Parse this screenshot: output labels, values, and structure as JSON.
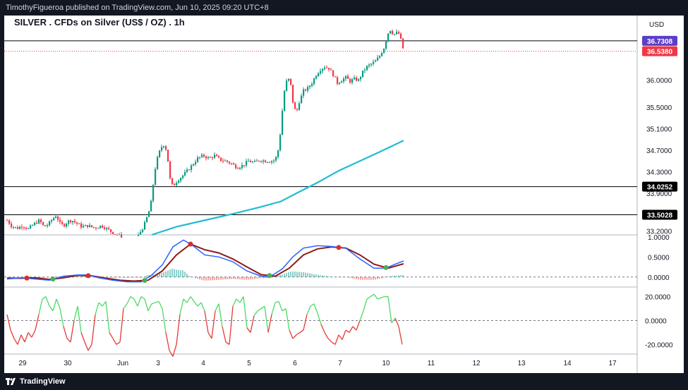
{
  "header": {
    "publisher_line": "TimothyFigueroa published on TradingView.com, Jun 10, 2025 09:20 UTC+8"
  },
  "footer": {
    "brand": "TradingView",
    "logo_icon": "tradingview-logo-icon"
  },
  "chart_data": {
    "type": "candlestick",
    "title": "SILVER . CFDs on Silver (US$ / OZ) . 1h",
    "currency": "USD",
    "x_ticks": [
      "29",
      "30",
      "Jun",
      "3",
      "4",
      "5",
      "6",
      "7",
      "10",
      "11",
      "12",
      "13",
      "14",
      "17"
    ],
    "price_axis_ticks": [
      "36.0000",
      "35.5000",
      "35.1000",
      "34.7000",
      "34.3000",
      "33.9000",
      "33.2000"
    ],
    "price_ylim": [
      33.13,
      37.2
    ],
    "horizontal_levels": [
      {
        "value": 36.7308,
        "label": "36.7308",
        "color": "#5b3ec8",
        "style": "solid"
      },
      {
        "value": 36.538,
        "label": "36.5380",
        "color": "#f23645",
        "style": "dotted"
      },
      {
        "value": 34.0252,
        "label": "34.0252",
        "color": "#000000",
        "style": "solid"
      },
      {
        "value": 33.5028,
        "label": "33.5028",
        "color": "#000000",
        "style": "solid"
      }
    ],
    "price_path": [
      [
        0,
        33.4
      ],
      [
        6,
        33.3
      ],
      [
        14,
        33.25
      ],
      [
        22,
        33.3
      ],
      [
        30,
        33.24
      ],
      [
        38,
        33.33
      ],
      [
        46,
        33.4
      ],
      [
        52,
        33.28
      ],
      [
        58,
        33.32
      ],
      [
        64,
        33.42
      ],
      [
        70,
        33.5
      ],
      [
        74,
        33.35
      ],
      [
        80,
        33.3
      ],
      [
        86,
        33.38
      ],
      [
        92,
        33.4
      ],
      [
        98,
        33.35
      ],
      [
        106,
        33.28
      ],
      [
        114,
        33.3
      ],
      [
        124,
        33.26
      ],
      [
        134,
        33.3
      ],
      [
        144,
        33.22
      ],
      [
        152,
        33.15
      ],
      [
        162,
        33.1
      ],
      [
        174,
        33.05
      ],
      [
        186,
        33.12
      ],
      [
        194,
        33.3
      ],
      [
        198,
        33.45
      ],
      [
        202,
        33.6
      ],
      [
        205,
        33.8
      ],
      [
        208,
        34.2
      ],
      [
        211,
        34.45
      ],
      [
        214,
        34.6
      ],
      [
        218,
        34.75
      ],
      [
        222,
        34.8
      ],
      [
        226,
        34.7
      ],
      [
        229,
        34.4
      ],
      [
        232,
        34.05
      ],
      [
        236,
        34.05
      ],
      [
        242,
        34.15
      ],
      [
        248,
        34.22
      ],
      [
        254,
        34.3
      ],
      [
        262,
        34.42
      ],
      [
        270,
        34.55
      ],
      [
        278,
        34.6
      ],
      [
        286,
        34.55
      ],
      [
        294,
        34.6
      ],
      [
        302,
        34.52
      ],
      [
        310,
        34.5
      ],
      [
        318,
        34.45
      ],
      [
        326,
        34.38
      ],
      [
        334,
        34.42
      ],
      [
        342,
        34.5
      ],
      [
        350,
        34.47
      ],
      [
        358,
        34.52
      ],
      [
        366,
        34.5
      ],
      [
        374,
        34.5
      ],
      [
        380,
        34.52
      ],
      [
        384,
        34.7
      ],
      [
        388,
        35.1
      ],
      [
        391,
        35.6
      ],
      [
        394,
        35.9
      ],
      [
        398,
        36.05
      ],
      [
        402,
        35.9
      ],
      [
        406,
        35.5
      ],
      [
        410,
        35.4
      ],
      [
        414,
        35.6
      ],
      [
        420,
        35.8
      ],
      [
        426,
        35.85
      ],
      [
        432,
        35.95
      ],
      [
        438,
        36.1
      ],
      [
        444,
        36.2
      ],
      [
        450,
        36.25
      ],
      [
        456,
        36.22
      ],
      [
        462,
        36.1
      ],
      [
        468,
        35.95
      ],
      [
        474,
        36.0
      ],
      [
        480,
        36.05
      ],
      [
        486,
        35.98
      ],
      [
        492,
        36.02
      ],
      [
        498,
        36.0
      ],
      [
        504,
        36.15
      ],
      [
        510,
        36.25
      ],
      [
        516,
        36.3
      ],
      [
        522,
        36.35
      ],
      [
        528,
        36.45
      ],
      [
        534,
        36.6
      ],
      [
        538,
        36.8
      ],
      [
        542,
        36.95
      ],
      [
        546,
        36.88
      ],
      [
        550,
        36.85
      ],
      [
        554,
        36.9
      ],
      [
        558,
        36.75
      ],
      [
        562,
        36.54
      ]
    ],
    "moving_average": {
      "color": "#1fbcd2",
      "points": [
        [
          205,
          33.1
        ],
        [
          240,
          33.28
        ],
        [
          280,
          33.4
        ],
        [
          320,
          33.52
        ],
        [
          360,
          33.65
        ],
        [
          388,
          33.75
        ],
        [
          410,
          33.9
        ],
        [
          440,
          34.1
        ],
        [
          470,
          34.32
        ],
        [
          500,
          34.5
        ],
        [
          530,
          34.68
        ],
        [
          562,
          34.88
        ]
      ]
    },
    "oscillator": {
      "ticks": [
        "1.0000",
        "0.5000",
        "0.0000"
      ],
      "ylim": [
        -0.25,
        1.05
      ],
      "fast_line": [
        [
          0,
          -0.05
        ],
        [
          20,
          -0.02
        ],
        [
          40,
          -0.05
        ],
        [
          60,
          -0.08
        ],
        [
          80,
          0.02
        ],
        [
          100,
          0.05
        ],
        [
          115,
          0.05
        ],
        [
          130,
          -0.02
        ],
        [
          150,
          -0.08
        ],
        [
          170,
          -0.12
        ],
        [
          190,
          -0.12
        ],
        [
          205,
          0.05
        ],
        [
          220,
          0.3
        ],
        [
          235,
          0.75
        ],
        [
          250,
          0.92
        ],
        [
          262,
          0.8
        ],
        [
          280,
          0.55
        ],
        [
          300,
          0.5
        ],
        [
          320,
          0.38
        ],
        [
          340,
          0.15
        ],
        [
          360,
          0.02
        ],
        [
          372,
          0.0
        ],
        [
          390,
          0.2
        ],
        [
          405,
          0.5
        ],
        [
          420,
          0.72
        ],
        [
          440,
          0.78
        ],
        [
          460,
          0.76
        ],
        [
          480,
          0.72
        ],
        [
          500,
          0.45
        ],
        [
          520,
          0.22
        ],
        [
          537,
          0.22
        ],
        [
          550,
          0.32
        ],
        [
          562,
          0.4
        ]
      ],
      "slow_line": [
        [
          0,
          -0.03
        ],
        [
          20,
          -0.03
        ],
        [
          40,
          -0.02
        ],
        [
          60,
          -0.06
        ],
        [
          80,
          -0.02
        ],
        [
          100,
          0.04
        ],
        [
          120,
          0.03
        ],
        [
          140,
          -0.03
        ],
        [
          160,
          -0.08
        ],
        [
          180,
          -0.1
        ],
        [
          200,
          -0.08
        ],
        [
          220,
          0.15
        ],
        [
          240,
          0.55
        ],
        [
          260,
          0.82
        ],
        [
          280,
          0.68
        ],
        [
          300,
          0.6
        ],
        [
          320,
          0.45
        ],
        [
          340,
          0.25
        ],
        [
          360,
          0.06
        ],
        [
          380,
          0.02
        ],
        [
          400,
          0.22
        ],
        [
          420,
          0.55
        ],
        [
          440,
          0.7
        ],
        [
          460,
          0.75
        ],
        [
          480,
          0.72
        ],
        [
          500,
          0.55
        ],
        [
          520,
          0.32
        ],
        [
          540,
          0.22
        ],
        [
          562,
          0.33
        ]
      ],
      "cross_markers": [
        {
          "x": 28,
          "color": "#d32f2f"
        },
        {
          "x": 65,
          "color": "#4caf50"
        },
        {
          "x": 115,
          "color": "#d32f2f"
        },
        {
          "x": 195,
          "color": "#4caf50"
        },
        {
          "x": 260,
          "color": "#d32f2f"
        },
        {
          "x": 372,
          "color": "#4caf50"
        },
        {
          "x": 470,
          "color": "#d32f2f"
        },
        {
          "x": 537,
          "color": "#4caf50"
        }
      ]
    },
    "momentum": {
      "ticks": [
        "20.0000",
        "0.0000",
        "-20.0000"
      ],
      "ylim": [
        -28,
        28
      ],
      "path": [
        [
          0,
          5
        ],
        [
          5,
          -8
        ],
        [
          10,
          -15
        ],
        [
          15,
          -20
        ],
        [
          20,
          -12
        ],
        [
          25,
          -18
        ],
        [
          30,
          -10
        ],
        [
          35,
          -14
        ],
        [
          40,
          -8
        ],
        [
          45,
          5
        ],
        [
          50,
          18
        ],
        [
          55,
          20
        ],
        [
          60,
          12
        ],
        [
          65,
          8
        ],
        [
          70,
          18
        ],
        [
          75,
          10
        ],
        [
          80,
          -5
        ],
        [
          85,
          -15
        ],
        [
          90,
          -18
        ],
        [
          95,
          0
        ],
        [
          100,
          12
        ],
        [
          105,
          -10
        ],
        [
          110,
          -18
        ],
        [
          115,
          -25
        ],
        [
          120,
          -20
        ],
        [
          125,
          5
        ],
        [
          130,
          15
        ],
        [
          135,
          12
        ],
        [
          140,
          16
        ],
        [
          145,
          -10
        ],
        [
          150,
          -15
        ],
        [
          155,
          -20
        ],
        [
          160,
          -18
        ],
        [
          165,
          10
        ],
        [
          170,
          14
        ],
        [
          175,
          20
        ],
        [
          180,
          18
        ],
        [
          185,
          12
        ],
        [
          190,
          20
        ],
        [
          195,
          18
        ],
        [
          200,
          8
        ],
        [
          205,
          14
        ],
        [
          210,
          15
        ],
        [
          215,
          16
        ],
        [
          220,
          10
        ],
        [
          225,
          -10
        ],
        [
          230,
          -25
        ],
        [
          235,
          -30
        ],
        [
          240,
          -20
        ],
        [
          245,
          5
        ],
        [
          250,
          18
        ],
        [
          255,
          15
        ],
        [
          260,
          20
        ],
        [
          265,
          16
        ],
        [
          270,
          12
        ],
        [
          275,
          15
        ],
        [
          280,
          8
        ],
        [
          285,
          -10
        ],
        [
          290,
          -15
        ],
        [
          295,
          8
        ],
        [
          300,
          14
        ],
        [
          305,
          -5
        ],
        [
          310,
          -18
        ],
        [
          315,
          -20
        ],
        [
          320,
          12
        ],
        [
          325,
          18
        ],
        [
          330,
          15
        ],
        [
          335,
          20
        ],
        [
          340,
          -6
        ],
        [
          345,
          -10
        ],
        [
          350,
          4
        ],
        [
          355,
          8
        ],
        [
          360,
          10
        ],
        [
          365,
          12
        ],
        [
          370,
          -10
        ],
        [
          375,
          5
        ],
        [
          380,
          15
        ],
        [
          385,
          16
        ],
        [
          390,
          8
        ],
        [
          395,
          10
        ],
        [
          400,
          -8
        ],
        [
          405,
          -15
        ],
        [
          410,
          -12
        ],
        [
          415,
          -10
        ],
        [
          420,
          -8
        ],
        [
          425,
          5
        ],
        [
          430,
          12
        ],
        [
          435,
          14
        ],
        [
          440,
          6
        ],
        [
          445,
          -3
        ],
        [
          450,
          -10
        ],
        [
          455,
          -15
        ],
        [
          460,
          -18
        ],
        [
          465,
          -20
        ],
        [
          470,
          -12
        ],
        [
          475,
          -16
        ],
        [
          480,
          -8
        ],
        [
          485,
          -10
        ],
        [
          490,
          -5
        ],
        [
          495,
          -8
        ],
        [
          500,
          0
        ],
        [
          505,
          8
        ],
        [
          510,
          18
        ],
        [
          515,
          20
        ],
        [
          520,
          22
        ],
        [
          525,
          18
        ],
        [
          530,
          19
        ],
        [
          535,
          20
        ],
        [
          540,
          20
        ],
        [
          545,
          -2
        ],
        [
          550,
          2
        ],
        [
          555,
          -5
        ],
        [
          560,
          -20
        ]
      ]
    }
  }
}
